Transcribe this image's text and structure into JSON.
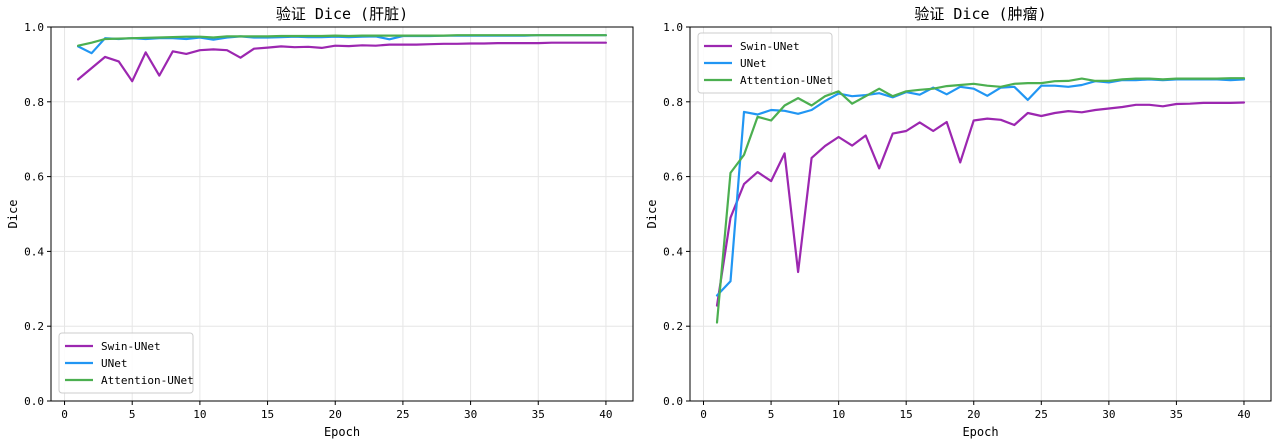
{
  "chart_data": [
    {
      "type": "line",
      "title": "验证 Dice (肝脏)",
      "xlabel": "Epoch",
      "ylabel": "Dice",
      "xlim": [
        -1,
        42
      ],
      "ylim": [
        0.0,
        1.0
      ],
      "xticks": [
        0,
        5,
        10,
        15,
        20,
        25,
        30,
        35,
        40
      ],
      "yticks": [
        0.0,
        0.2,
        0.4,
        0.6,
        0.8,
        1.0
      ],
      "ytick_labels": [
        "0.0",
        "0.2",
        "0.4",
        "0.6",
        "0.8",
        "1.0"
      ],
      "grid": true,
      "legend_position": "lower-left",
      "x": [
        1,
        2,
        3,
        4,
        5,
        6,
        7,
        8,
        9,
        10,
        11,
        12,
        13,
        14,
        15,
        16,
        17,
        18,
        19,
        20,
        21,
        22,
        23,
        24,
        25,
        26,
        27,
        28,
        29,
        30,
        31,
        32,
        33,
        34,
        35,
        36,
        37,
        38,
        39,
        40
      ],
      "series": [
        {
          "name": "Swin-UNet",
          "color": "#9c27b0",
          "values": [
            0.86,
            0.89,
            0.92,
            0.908,
            0.855,
            0.932,
            0.87,
            0.935,
            0.928,
            0.938,
            0.94,
            0.938,
            0.918,
            0.942,
            0.945,
            0.948,
            0.946,
            0.947,
            0.944,
            0.95,
            0.949,
            0.951,
            0.95,
            0.953,
            0.953,
            0.953,
            0.954,
            0.955,
            0.955,
            0.956,
            0.956,
            0.957,
            0.957,
            0.957,
            0.957,
            0.958,
            0.958,
            0.958,
            0.958,
            0.958
          ]
        },
        {
          "name": "UNet",
          "color": "#2196f3",
          "values": [
            0.948,
            0.93,
            0.97,
            0.968,
            0.97,
            0.968,
            0.97,
            0.97,
            0.968,
            0.972,
            0.966,
            0.972,
            0.975,
            0.972,
            0.972,
            0.973,
            0.974,
            0.973,
            0.973,
            0.974,
            0.973,
            0.974,
            0.975,
            0.967,
            0.976,
            0.976,
            0.976,
            0.977,
            0.977,
            0.977,
            0.977,
            0.977,
            0.977,
            0.977,
            0.978,
            0.978,
            0.978,
            0.978,
            0.978,
            0.978
          ]
        },
        {
          "name": "Attention-UNet",
          "color": "#4caf50",
          "values": [
            0.95,
            0.958,
            0.968,
            0.969,
            0.97,
            0.971,
            0.972,
            0.973,
            0.974,
            0.974,
            0.972,
            0.975,
            0.975,
            0.975,
            0.975,
            0.976,
            0.976,
            0.976,
            0.976,
            0.977,
            0.976,
            0.977,
            0.977,
            0.977,
            0.977,
            0.977,
            0.977,
            0.977,
            0.978,
            0.978,
            0.978,
            0.978,
            0.978,
            0.978,
            0.978,
            0.978,
            0.978,
            0.978,
            0.978,
            0.978
          ]
        }
      ]
    },
    {
      "type": "line",
      "title": "验证 Dice (肿瘤)",
      "xlabel": "Epoch",
      "ylabel": "Dice",
      "xlim": [
        -1,
        42
      ],
      "ylim": [
        0.0,
        1.0
      ],
      "xticks": [
        0,
        5,
        10,
        15,
        20,
        25,
        30,
        35,
        40
      ],
      "yticks": [
        0.0,
        0.2,
        0.4,
        0.6,
        0.8,
        1.0
      ],
      "ytick_labels": [
        "0.0",
        "0.2",
        "0.4",
        "0.6",
        "0.8",
        "1.0"
      ],
      "grid": true,
      "legend_position": "top-left",
      "x": [
        1,
        2,
        3,
        4,
        5,
        6,
        7,
        8,
        9,
        10,
        11,
        12,
        13,
        14,
        15,
        16,
        17,
        18,
        19,
        20,
        21,
        22,
        23,
        24,
        25,
        26,
        27,
        28,
        29,
        30,
        31,
        32,
        33,
        34,
        35,
        36,
        37,
        38,
        39,
        40
      ],
      "series": [
        {
          "name": "Swin-UNet",
          "color": "#9c27b0",
          "values": [
            0.255,
            0.49,
            0.58,
            0.612,
            0.588,
            0.662,
            0.345,
            0.65,
            0.682,
            0.706,
            0.683,
            0.71,
            0.622,
            0.715,
            0.722,
            0.745,
            0.722,
            0.746,
            0.638,
            0.75,
            0.755,
            0.752,
            0.738,
            0.77,
            0.762,
            0.77,
            0.775,
            0.772,
            0.778,
            0.782,
            0.786,
            0.792,
            0.792,
            0.788,
            0.794,
            0.795,
            0.797,
            0.797,
            0.797,
            0.798
          ]
        },
        {
          "name": "UNet",
          "color": "#2196f3",
          "values": [
            0.282,
            0.32,
            0.773,
            0.766,
            0.778,
            0.776,
            0.768,
            0.778,
            0.802,
            0.822,
            0.815,
            0.818,
            0.823,
            0.812,
            0.826,
            0.819,
            0.838,
            0.82,
            0.84,
            0.835,
            0.816,
            0.838,
            0.84,
            0.805,
            0.843,
            0.843,
            0.84,
            0.845,
            0.855,
            0.852,
            0.858,
            0.858,
            0.86,
            0.858,
            0.86,
            0.86,
            0.86,
            0.86,
            0.858,
            0.86
          ]
        },
        {
          "name": "Attention-UNet",
          "color": "#4caf50",
          "values": [
            0.21,
            0.61,
            0.658,
            0.76,
            0.75,
            0.79,
            0.81,
            0.79,
            0.815,
            0.828,
            0.795,
            0.815,
            0.835,
            0.815,
            0.828,
            0.832,
            0.835,
            0.842,
            0.845,
            0.848,
            0.843,
            0.84,
            0.848,
            0.85,
            0.85,
            0.855,
            0.856,
            0.862,
            0.856,
            0.856,
            0.86,
            0.862,
            0.862,
            0.86,
            0.862,
            0.862,
            0.862,
            0.862,
            0.863,
            0.863
          ]
        }
      ]
    }
  ]
}
